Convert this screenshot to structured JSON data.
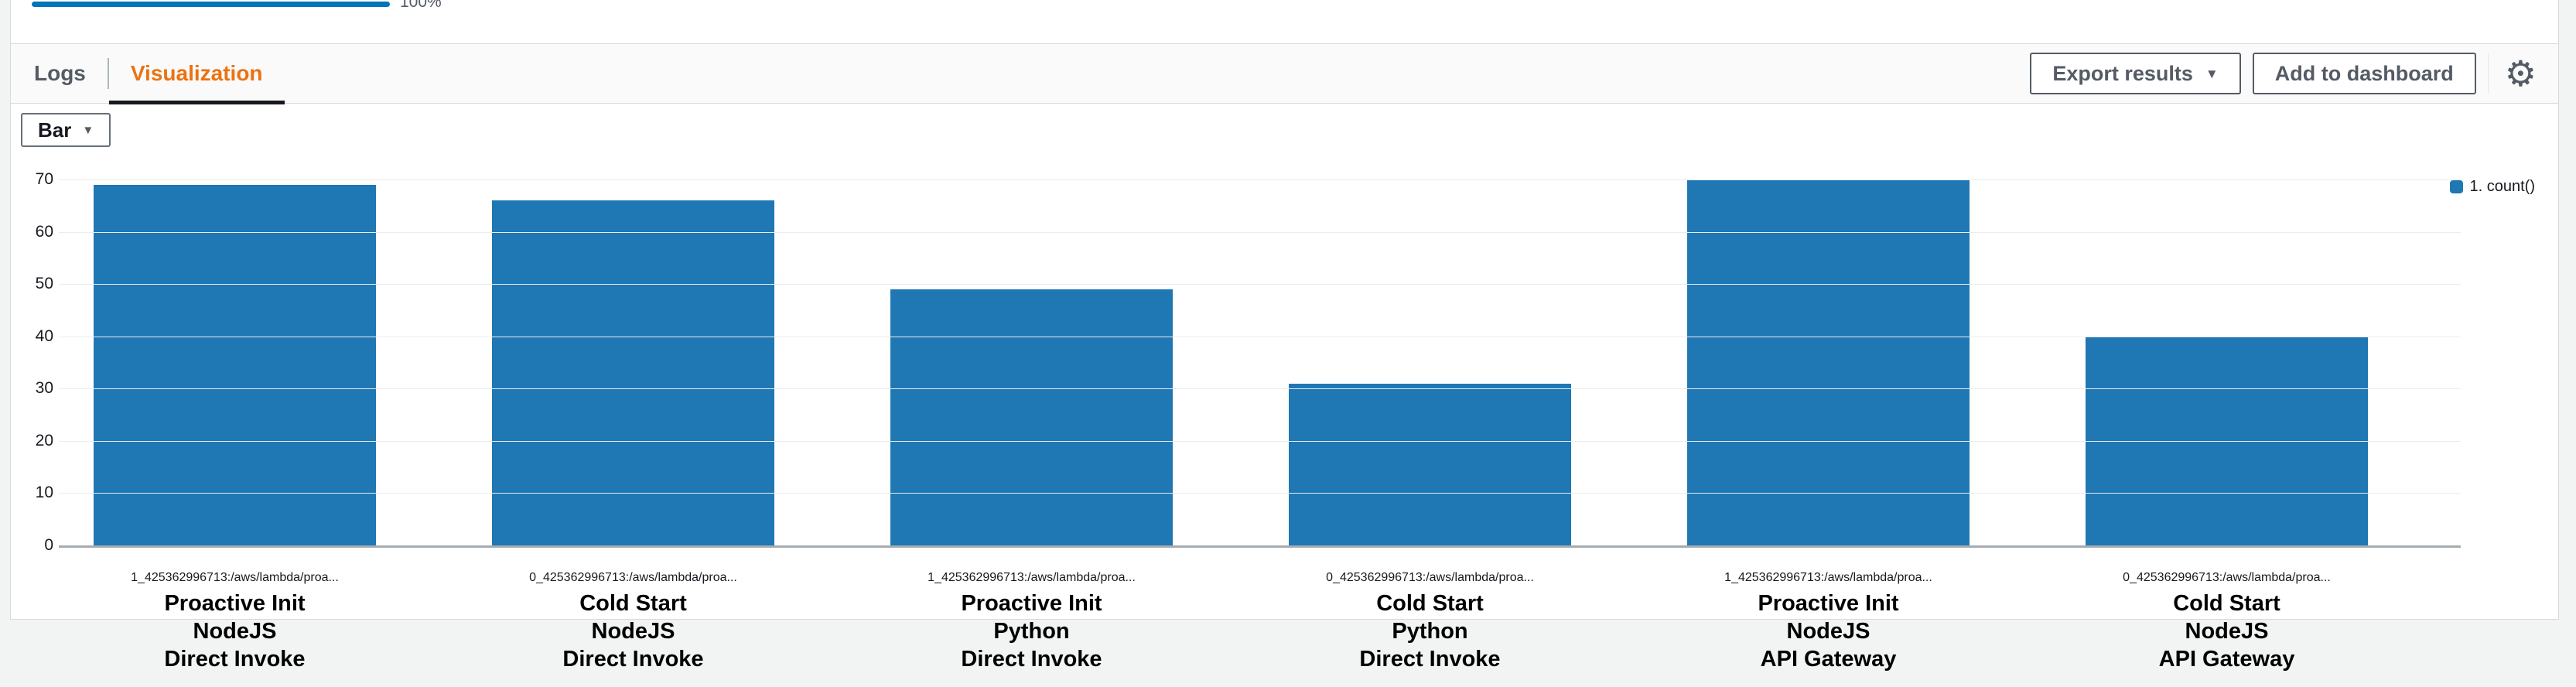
{
  "progress": {
    "label": "100%",
    "value": 100,
    "color": "#0073bb"
  },
  "tabs": [
    {
      "label": "Logs",
      "active": false
    },
    {
      "label": "Visualization",
      "active": true
    }
  ],
  "toolbar": {
    "export_label": "Export results",
    "add_dashboard_label": "Add to dashboard"
  },
  "chart_controls": {
    "type_label": "Bar"
  },
  "icons": {
    "caret_down": "▼",
    "gear": "⚙"
  },
  "colors": {
    "accent_orange": "#ec7211",
    "active_tab_underline": "#16191f",
    "button_text": "#545b64",
    "page_background": "#f2f3f3"
  },
  "chart_data": {
    "type": "bar",
    "title": "",
    "xlabel": "",
    "ylabel": "",
    "categories": [
      "1_425362996713:/aws/lambda/proa...",
      "0_425362996713:/aws/lambda/proa...",
      "1_425362996713:/aws/lambda/proa...",
      "0_425362996713:/aws/lambda/proa...",
      "1_425362996713:/aws/lambda/proa...",
      "0_425362996713:/aws/lambda/proa..."
    ],
    "category_annotations": [
      [
        "Proactive Init",
        "NodeJS",
        "Direct Invoke"
      ],
      [
        "Cold Start",
        "NodeJS",
        "Direct Invoke"
      ],
      [
        "Proactive Init",
        "Python",
        "Direct Invoke"
      ],
      [
        "Cold Start",
        "Python",
        "Direct Invoke"
      ],
      [
        "Proactive Init",
        "NodeJS",
        "API Gateway"
      ],
      [
        "Cold Start",
        "NodeJS",
        "API Gateway"
      ]
    ],
    "series": [
      {
        "name": "1. count()",
        "values": [
          69,
          66,
          49,
          31,
          70,
          40
        ],
        "color": "#1f77b4"
      }
    ],
    "ylim": [
      0,
      70
    ],
    "yticks": [
      0,
      10,
      20,
      30,
      40,
      50,
      60,
      70
    ],
    "grid": true,
    "legend_position": "right"
  }
}
